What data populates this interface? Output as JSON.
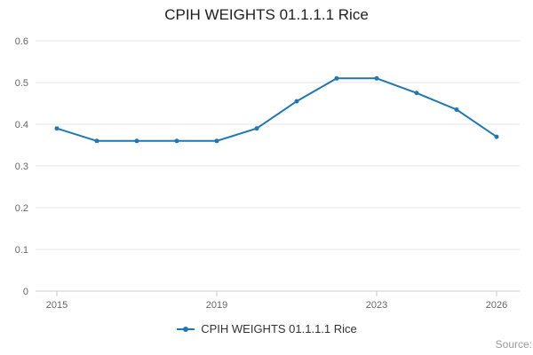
{
  "title": "CPIH WEIGHTS 01.1.1.1 Rice",
  "legend": {
    "label": "CPIH WEIGHTS 01.1.1.1 Rice"
  },
  "source_label": "Source:",
  "colors": {
    "line": "#1f77b4",
    "grid": "#e6e6e6",
    "axis_line": "#cccccc",
    "axis_text": "#666666",
    "title_text": "#1e1e1e"
  },
  "chart_data": {
    "type": "line",
    "title": "CPIH WEIGHTS 01.1.1.1 Rice",
    "x": [
      2015,
      2016,
      2017,
      2018,
      2019,
      2020,
      2021,
      2022,
      2023,
      2024,
      2025,
      2026
    ],
    "series": [
      {
        "name": "CPIH WEIGHTS 01.1.1.1 Rice",
        "values": [
          0.39,
          0.36,
          0.36,
          0.36,
          0.36,
          0.39,
          0.455,
          0.51,
          0.51,
          0.475,
          0.435,
          0.37
        ]
      }
    ],
    "xlabel": "",
    "ylabel": "",
    "ylim": [
      0,
      0.6
    ],
    "y_tick_values": [
      0,
      0.1,
      0.2,
      0.3,
      0.4,
      0.5,
      0.6
    ],
    "y_tick_labels": [
      "0",
      "0.1",
      "0.2",
      "0.3",
      "0.4",
      "0.5",
      "0.6"
    ],
    "x_tick_values": [
      2015,
      2019,
      2023,
      2026
    ],
    "x_tick_labels": [
      "2015",
      "2019",
      "2023",
      "2026"
    ],
    "grid": true,
    "legend_position": "bottom",
    "marker": "circle"
  }
}
